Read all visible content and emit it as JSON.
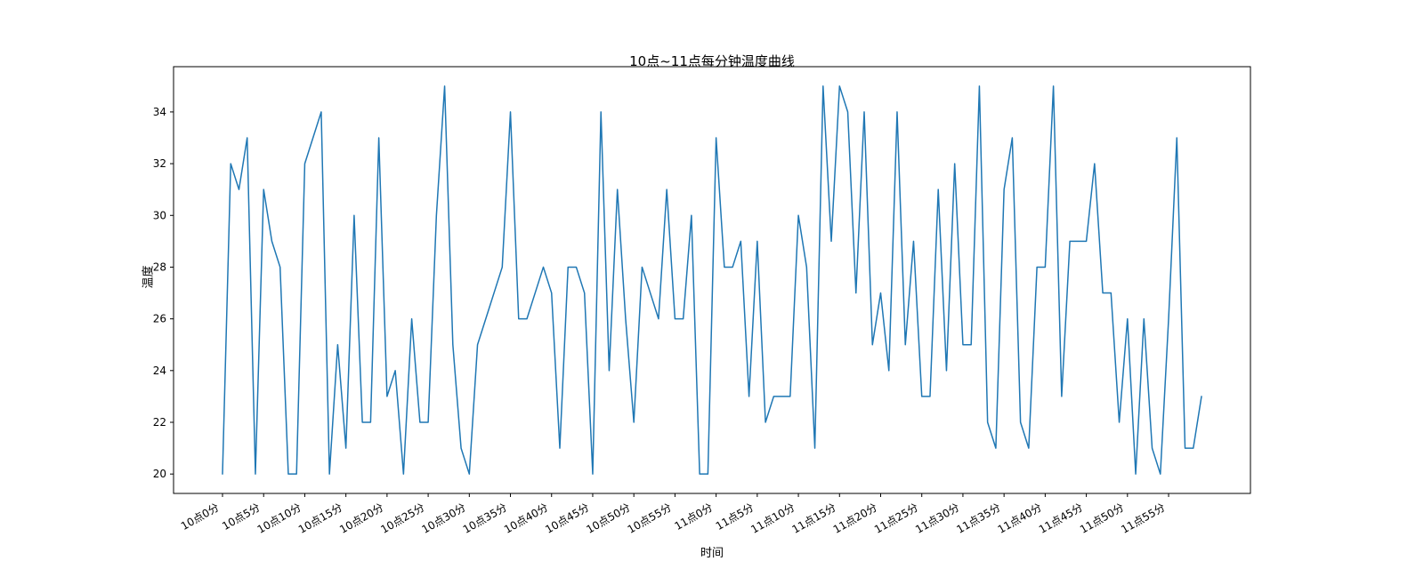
{
  "chart_data": {
    "type": "line",
    "title": "10点~11点每分钟温度曲线",
    "xlabel": "时间",
    "ylabel": "温度",
    "line_color": "#1f77b4",
    "axes_color": "#000000",
    "background_color": "#ffffff",
    "grid": false,
    "legend": "none",
    "ylim": [
      19.25,
      35.75
    ],
    "yticks": [
      20,
      22,
      24,
      26,
      28,
      30,
      32,
      34
    ],
    "x_tick_labels": [
      "10点0分",
      "10点5分",
      "10点10分",
      "10点15分",
      "10点20分",
      "10点25分",
      "10点30分",
      "10点35分",
      "10点40分",
      "10点45分",
      "10点50分",
      "10点55分",
      "11点0分",
      "11点5分",
      "11点10分",
      "11点15分",
      "11点20分",
      "11点25分",
      "11点30分",
      "11点35分",
      "11点40分",
      "11点45分",
      "11点50分",
      "11点55分"
    ],
    "x_tick_positions": [
      0,
      5,
      10,
      15,
      20,
      25,
      30,
      35,
      40,
      45,
      50,
      55,
      60,
      65,
      70,
      75,
      80,
      85,
      90,
      95,
      100,
      105,
      110,
      115
    ],
    "x_is_minute_index": true,
    "values": [
      20,
      32,
      31,
      33,
      20,
      31,
      29,
      28,
      20,
      20,
      32,
      33,
      34,
      20,
      25,
      21,
      30,
      22,
      22,
      33,
      23,
      24,
      20,
      26,
      22,
      22,
      30,
      35,
      25,
      21,
      20,
      25,
      26,
      27,
      28,
      34,
      26,
      26,
      27,
      28,
      27,
      21,
      28,
      28,
      27,
      20,
      34,
      24,
      31,
      26,
      22,
      28,
      27,
      26,
      31,
      26,
      26,
      30,
      20,
      20,
      33,
      28,
      28,
      29,
      23,
      29,
      22,
      23,
      23,
      23,
      30,
      28,
      21,
      35,
      29,
      35,
      34,
      27,
      34,
      25,
      27,
      24,
      34,
      25,
      29,
      23,
      23,
      31,
      24,
      32,
      25,
      25,
      35,
      22,
      21,
      31,
      33,
      22,
      21,
      28,
      28,
      35,
      23,
      29,
      29,
      29,
      32,
      27,
      27,
      22,
      26,
      20,
      26,
      21,
      20,
      26,
      33,
      21,
      21,
      23
    ]
  }
}
